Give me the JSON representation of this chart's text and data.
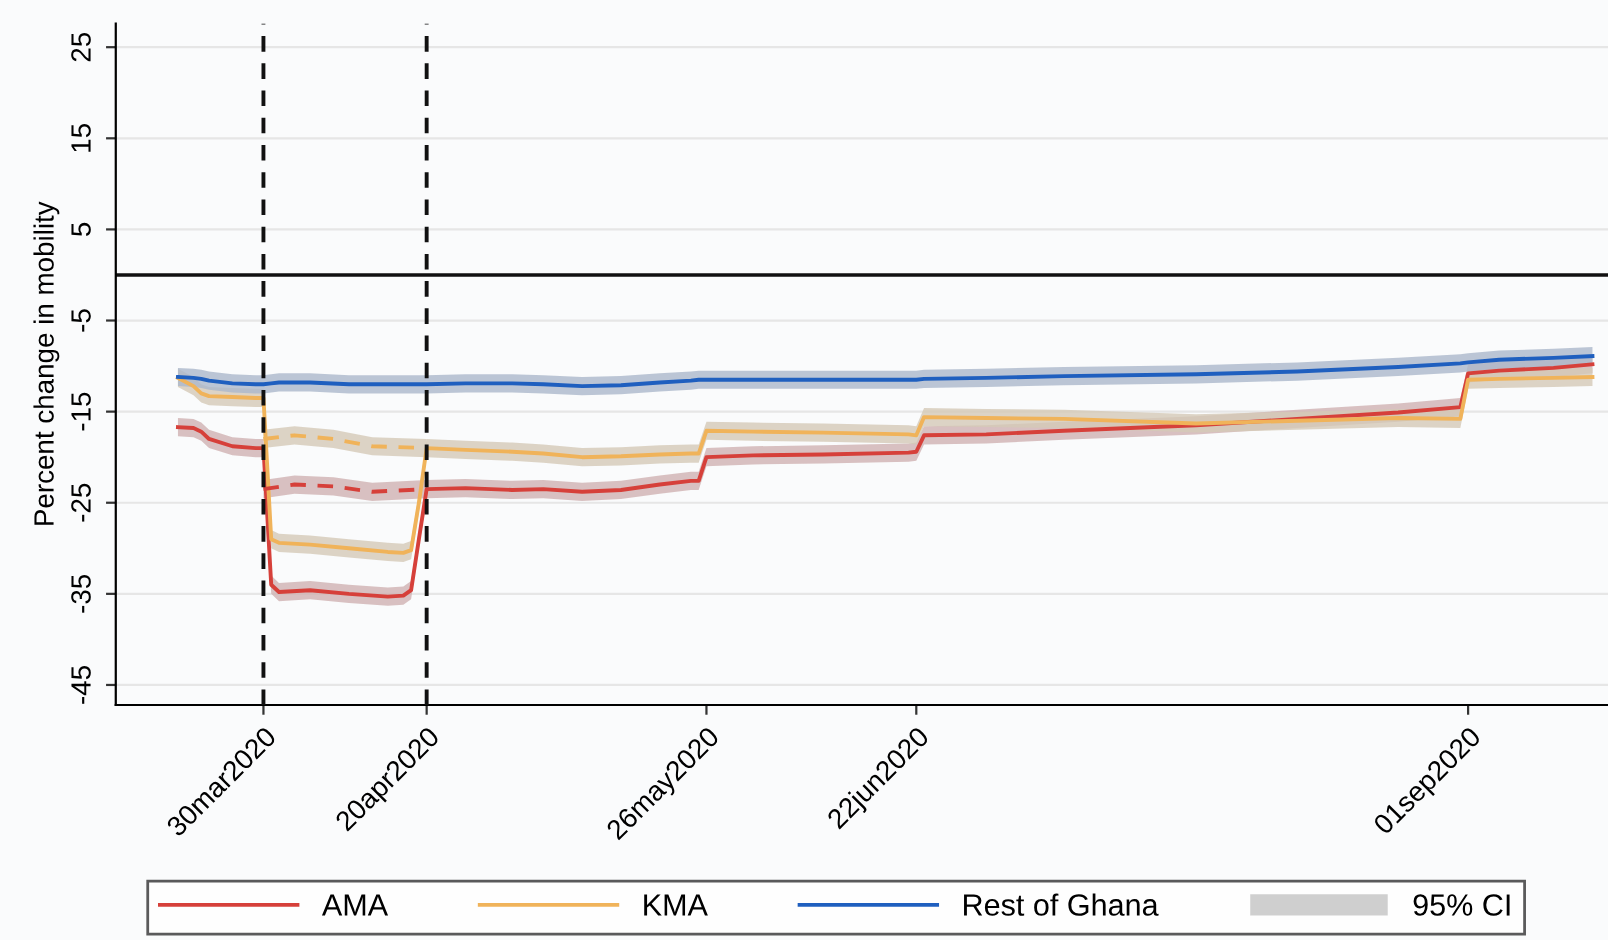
{
  "chart_data": {
    "type": "line",
    "ylabel": "Percent change in mobility",
    "x": [
      "2020-03-19",
      "2020-03-21",
      "2020-03-22",
      "2020-03-23",
      "2020-03-26",
      "2020-03-29",
      "2020-03-30",
      "2020-03-31",
      "2020-04-01",
      "2020-04-05",
      "2020-04-10",
      "2020-04-15",
      "2020-04-17",
      "2020-04-18",
      "2020-04-19",
      "2020-04-20",
      "2020-04-25",
      "2020-05-01",
      "2020-05-05",
      "2020-05-10",
      "2020-05-15",
      "2020-05-20",
      "2020-05-24",
      "2020-05-25",
      "2020-05-26",
      "2020-06-01",
      "2020-06-10",
      "2020-06-21",
      "2020-06-22",
      "2020-06-23",
      "2020-07-01",
      "2020-07-11",
      "2020-07-28",
      "2020-08-10",
      "2020-08-23",
      "2020-08-31",
      "2020-09-01",
      "2020-09-05",
      "2020-09-12",
      "2020-09-17"
    ],
    "series": [
      {
        "name": "AMA",
        "color": "#d6403a",
        "values": [
          -16.7,
          -16.8,
          -17.2,
          -18.0,
          -18.8,
          -19.0,
          -19.0,
          -34.0,
          -34.8,
          -34.6,
          -35.0,
          -35.3,
          -35.2,
          -34.6,
          -29,
          -23.5,
          -23.4,
          -23.6,
          -23.5,
          -23.8,
          -23.6,
          -23.0,
          -22.6,
          -22.6,
          -20.0,
          -19.8,
          -19.7,
          -19.5,
          -19.4,
          -17.6,
          -17.5,
          -17.1,
          -16.5,
          -15.8,
          -15.1,
          -14.5,
          -10.8,
          -10.5,
          -10.2,
          -9.8
        ],
        "lower": [
          -17.7,
          -17.8,
          -18.2,
          -19.0,
          -19.8,
          -20.0,
          -20.0,
          -35.0,
          -35.8,
          -35.6,
          -36.0,
          -36.3,
          -36.2,
          -35.6,
          -30,
          -24.5,
          -24.4,
          -24.6,
          -24.5,
          -24.8,
          -24.6,
          -24.0,
          -23.6,
          -23.6,
          -21.0,
          -20.8,
          -20.7,
          -20.5,
          -20.4,
          -18.6,
          -18.5,
          -18.1,
          -17.5,
          -16.8,
          -16.1,
          -15.5,
          -11.8,
          -11.5,
          -11.2,
          -10.8
        ],
        "upper": [
          -15.7,
          -15.8,
          -16.2,
          -17.0,
          -17.8,
          -18.0,
          -18.0,
          -33.0,
          -33.8,
          -33.6,
          -34.0,
          -34.3,
          -34.2,
          -33.6,
          -28,
          -22.5,
          -22.4,
          -22.6,
          -22.5,
          -22.8,
          -22.6,
          -22.0,
          -21.6,
          -21.6,
          -19.0,
          -18.8,
          -18.7,
          -18.5,
          -18.4,
          -16.6,
          -16.5,
          -16.1,
          -15.5,
          -14.8,
          -14.1,
          -13.5,
          -9.8,
          -9.5,
          -9.2,
          -8.8
        ]
      },
      {
        "name": "KMA",
        "color": "#f0b35a",
        "values": [
          -11.3,
          -12.2,
          -13.0,
          -13.3,
          -13.4,
          -13.5,
          -13.5,
          -29.0,
          -29.4,
          -29.6,
          -30.0,
          -30.4,
          -30.5,
          -30.2,
          -25,
          -19.0,
          -19.2,
          -19.4,
          -19.6,
          -20.0,
          -19.9,
          -19.7,
          -19.6,
          -19.6,
          -17.1,
          -17.2,
          -17.3,
          -17.5,
          -17.6,
          -15.6,
          -15.7,
          -15.8,
          -16.3,
          -16.0,
          -15.7,
          -15.8,
          -11.5,
          -11.4,
          -11.3,
          -11.2
        ],
        "lower": [
          -12.3,
          -13.2,
          -14.0,
          -14.3,
          -14.4,
          -14.5,
          -14.5,
          -30.0,
          -30.4,
          -30.6,
          -31.0,
          -31.4,
          -31.5,
          -31.2,
          -26,
          -20.0,
          -20.2,
          -20.4,
          -20.6,
          -21.0,
          -20.9,
          -20.7,
          -20.6,
          -20.6,
          -18.1,
          -18.2,
          -18.3,
          -18.5,
          -18.6,
          -16.6,
          -16.7,
          -16.8,
          -17.3,
          -17.0,
          -16.7,
          -16.8,
          -12.5,
          -12.4,
          -12.3,
          -12.2
        ],
        "upper": [
          -10.3,
          -11.2,
          -12.0,
          -12.3,
          -12.4,
          -12.5,
          -12.5,
          -28.0,
          -28.4,
          -28.6,
          -29.0,
          -29.4,
          -29.5,
          -29.2,
          -24,
          -18.0,
          -18.2,
          -18.4,
          -18.6,
          -19.0,
          -18.9,
          -18.7,
          -18.6,
          -18.6,
          -16.1,
          -16.2,
          -16.3,
          -16.5,
          -16.6,
          -14.6,
          -14.7,
          -14.8,
          -15.3,
          -15.0,
          -14.7,
          -14.8,
          -10.5,
          -10.4,
          -10.3,
          -10.2
        ]
      },
      {
        "name": "Rest of Ghana",
        "color": "#1f5fbf",
        "values": [
          -11.2,
          -11.3,
          -11.4,
          -11.6,
          -11.9,
          -12.0,
          -12.0,
          -11.9,
          -11.8,
          -11.8,
          -12.0,
          -12.0,
          -12.0,
          -12.0,
          -12.0,
          -12.0,
          -11.9,
          -11.9,
          -12.0,
          -12.2,
          -12.1,
          -11.8,
          -11.6,
          -11.5,
          -11.5,
          -11.5,
          -11.5,
          -11.5,
          -11.5,
          -11.4,
          -11.3,
          -11.1,
          -10.9,
          -10.6,
          -10.1,
          -9.7,
          -9.6,
          -9.3,
          -9.1,
          -8.9
        ],
        "lower": [
          -12.2,
          -12.3,
          -12.4,
          -12.6,
          -12.9,
          -13.0,
          -13.0,
          -12.9,
          -12.8,
          -12.8,
          -13.0,
          -13.0,
          -13.0,
          -13.0,
          -13.0,
          -13.0,
          -12.9,
          -12.9,
          -13.0,
          -13.2,
          -13.1,
          -12.8,
          -12.6,
          -12.5,
          -12.5,
          -12.5,
          -12.5,
          -12.5,
          -12.5,
          -12.4,
          -12.3,
          -12.1,
          -11.9,
          -11.6,
          -11.1,
          -10.7,
          -10.6,
          -10.3,
          -10.1,
          -9.9
        ],
        "upper": [
          -10.2,
          -10.3,
          -10.4,
          -10.6,
          -10.9,
          -11.0,
          -11.0,
          -10.9,
          -10.8,
          -10.8,
          -11.0,
          -11.0,
          -11.0,
          -11.0,
          -11.0,
          -11.0,
          -10.9,
          -10.9,
          -11.0,
          -11.2,
          -11.1,
          -10.8,
          -10.6,
          -10.5,
          -10.5,
          -10.5,
          -10.5,
          -10.5,
          -10.5,
          -10.4,
          -10.3,
          -10.1,
          -9.9,
          -9.6,
          -9.1,
          -8.7,
          -8.6,
          -8.3,
          -8.1,
          -7.9
        ]
      },
      {
        "color": "#d6403a",
        "line_style": "dashed",
        "x": [
          "2020-03-30",
          "2020-04-03",
          "2020-04-08",
          "2020-04-13",
          "2020-04-20"
        ],
        "values": [
          -23.5,
          -23.0,
          -23.2,
          -23.8,
          -23.5
        ],
        "lower": [
          -24.5,
          -24.0,
          -24.2,
          -24.8,
          -24.5
        ],
        "upper": [
          -22.5,
          -22.0,
          -22.2,
          -22.8,
          -22.5
        ]
      },
      {
        "color": "#f0b35a",
        "line_style": "dashed",
        "x": [
          "2020-03-30",
          "2020-04-03",
          "2020-04-08",
          "2020-04-13",
          "2020-04-20"
        ],
        "values": [
          -18.0,
          -17.6,
          -18.0,
          -18.8,
          -19.0
        ],
        "lower": [
          -19.0,
          -18.6,
          -19.0,
          -19.8,
          -20.0
        ],
        "upper": [
          -17.0,
          -16.6,
          -17.0,
          -17.8,
          -18.0
        ]
      }
    ],
    "xlim": [
      "2020-03-11",
      "2020-09-19"
    ],
    "xticks": [
      {
        "value": "2020-03-30",
        "label": "30mar2020"
      },
      {
        "value": "2020-04-20",
        "label": "20apr2020"
      },
      {
        "value": "2020-05-26",
        "label": "26may2020"
      },
      {
        "value": "2020-06-22",
        "label": "22jun2020"
      },
      {
        "value": "2020-09-01",
        "label": "01sep2020"
      }
    ],
    "ylim": [
      -47.2,
      27.6
    ],
    "yticks": [
      -45,
      -35,
      -25,
      -15,
      -5,
      5,
      15,
      25
    ],
    "ref_lines": [
      {
        "axis": "x",
        "value": "2020-03-30",
        "color": "#111111",
        "line_style": "dashed"
      },
      {
        "axis": "x",
        "value": "2020-04-20",
        "color": "#111111",
        "line_style": "dashed"
      },
      {
        "axis": "y",
        "value": 0,
        "color": "#111111",
        "line_style": "solid"
      }
    ],
    "annotations": [
      "95% CI"
    ],
    "grid": "y",
    "legend": "bottom",
    "line_style": "solid",
    "marker": "none"
  }
}
